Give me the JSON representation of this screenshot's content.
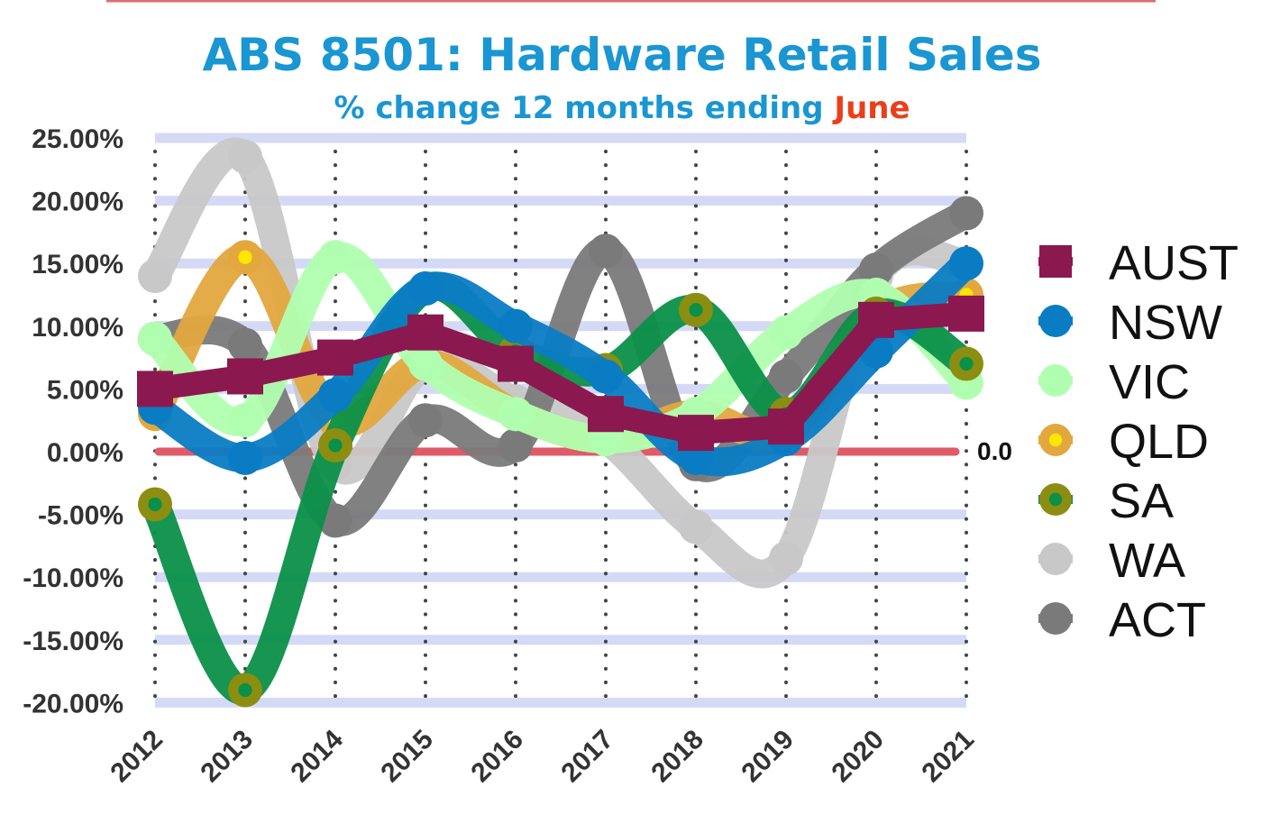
{
  "chart_data": {
    "type": "line",
    "title": "ABS 8501: Hardware Retail Sales",
    "subtitle_prefix": "% change 12 months ending ",
    "subtitle_highlight": "June",
    "x": [
      "2012",
      "2013",
      "2014",
      "2015",
      "2016",
      "2017",
      "2018",
      "2019",
      "2020",
      "2021"
    ],
    "ylim": [
      -20,
      25
    ],
    "yticks": [
      25,
      20,
      15,
      10,
      5,
      0,
      -5,
      -10,
      -15,
      -20
    ],
    "ytick_labels": [
      "25.00%",
      "20.00%",
      "15.00%",
      "10.00%",
      "5.00%",
      "0.00%",
      "-5.00%",
      "-10.00%",
      "-15.00%",
      "-20.00%"
    ],
    "zero_line_label": "0.0",
    "grid": "horizontal bands and dotted vertical lines",
    "legend_position": "right",
    "series": [
      {
        "name": "WA",
        "color": "#c8c8c8",
        "marker": "circle",
        "values": [
          14,
          23.5,
          -1,
          7,
          4,
          1,
          -6,
          -8.5,
          14,
          15
        ]
      },
      {
        "name": "ACT",
        "color": "#7a7a7a",
        "marker": "circle",
        "values": [
          9,
          8.5,
          -5.5,
          2.5,
          0.5,
          16,
          -1,
          6,
          14.5,
          19
        ]
      },
      {
        "name": "QLD",
        "color": "#e2a83e",
        "marker": "circle-dot",
        "markerDot": "#ffe600",
        "values": [
          3,
          15.5,
          2.5,
          7,
          3,
          1,
          3,
          1.5,
          11,
          12.5
        ]
      },
      {
        "name": "VIC",
        "color": "#b0ffb0",
        "marker": "circle",
        "values": [
          9,
          2.5,
          15.5,
          7,
          3,
          1,
          3,
          9.5,
          12.5,
          5.5
        ]
      },
      {
        "name": "SA",
        "color": "#0a9048",
        "marker": "circle-dot",
        "markerRing": "#8b8e10",
        "markerDot": "#0a9048",
        "values": [
          -4.2,
          -19,
          0.5,
          13,
          8,
          6.5,
          11.3,
          3,
          11,
          7
        ]
      },
      {
        "name": "NSW",
        "color": "#0a7cc4",
        "marker": "circle",
        "values": [
          3.5,
          -0.5,
          4.5,
          13,
          10,
          6,
          -0.5,
          1,
          8,
          15
        ]
      },
      {
        "name": "AUST",
        "color": "#8c1850",
        "marker": "square",
        "values": [
          5,
          6,
          7.5,
          9.5,
          7,
          3,
          1.5,
          2,
          10.5,
          11
        ]
      }
    ],
    "legend_order": [
      "AUST",
      "NSW",
      "VIC",
      "QLD",
      "SA",
      "WA",
      "ACT"
    ],
    "colors": {
      "title": "#1a96d2",
      "highlight": "#e8401a",
      "zero_line": "#e05a68",
      "grid_band": "#d4daf6",
      "top_rule": "#d87070"
    }
  }
}
